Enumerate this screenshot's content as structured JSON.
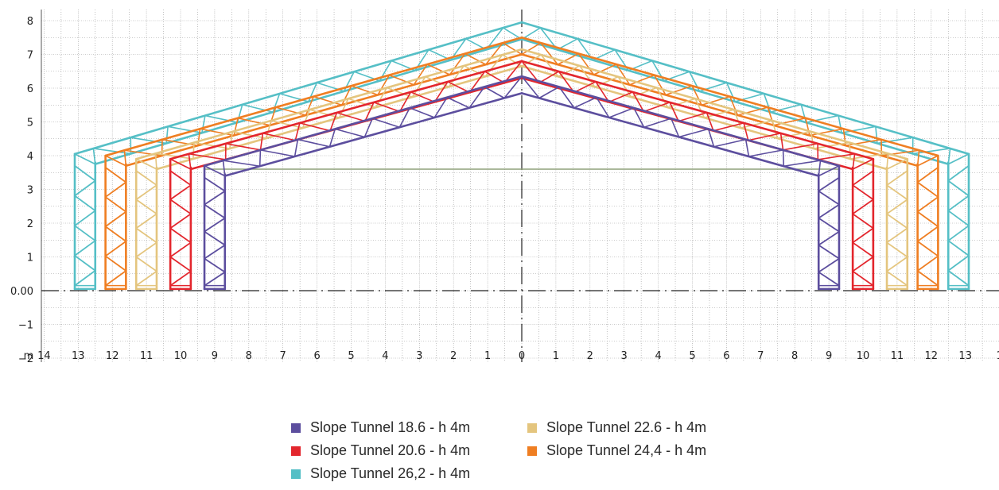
{
  "chart_data": {
    "type": "truss-elevation",
    "unit_label": "m",
    "x_ticks": [
      "14",
      "13",
      "12",
      "11",
      "10",
      "9",
      "8",
      "7",
      "6",
      "5",
      "4",
      "3",
      "2",
      "1",
      "0",
      "1",
      "2",
      "3",
      "4",
      "5",
      "6",
      "7",
      "8",
      "9",
      "10",
      "11",
      "12",
      "13",
      "1"
    ],
    "y_ticks": [
      "8",
      "7",
      "6",
      "5",
      "4",
      "3",
      "2",
      "1",
      "0.00",
      "−1",
      "−2"
    ],
    "ground_level": 0,
    "tie_line_height": 3.6,
    "grid": true,
    "legend_position": "bottom-center",
    "series": [
      {
        "name": "Slope Tunnel 18.6 - h 4m",
        "color": "#5c4e9e",
        "half_span": 9.3,
        "column_width": 0.6,
        "eave_height": 3.7,
        "ridge_height": 6.3
      },
      {
        "name": "Slope Tunnel 20.6 - h 4m",
        "color": "#e3262d",
        "half_span": 10.3,
        "column_width": 0.6,
        "eave_height": 3.9,
        "ridge_height": 6.75
      },
      {
        "name": "Slope Tunnel 22.6 - h 4m",
        "color": "#e4c57e",
        "half_span": 11.3,
        "column_width": 0.6,
        "eave_height": 3.9,
        "ridge_height": 7.1
      },
      {
        "name": "Slope Tunnel 24,4 - h 4m",
        "color": "#ef7e22",
        "half_span": 12.2,
        "column_width": 0.6,
        "eave_height": 4.0,
        "ridge_height": 7.45
      },
      {
        "name": "Slope Tunnel 26,2 - h 4m",
        "color": "#55bfc6",
        "half_span": 13.1,
        "column_width": 0.6,
        "eave_height": 4.05,
        "ridge_height": 7.9
      }
    ]
  },
  "legend": {
    "columns": [
      [
        "Slope Tunnel 18.6 - h 4m",
        "Slope Tunnel 20.6 - h 4m",
        "Slope Tunnel 26,2 - h 4m"
      ],
      [
        "Slope Tunnel 22.6 - h 4m",
        "Slope Tunnel 24,4 - h 4m"
      ]
    ]
  }
}
